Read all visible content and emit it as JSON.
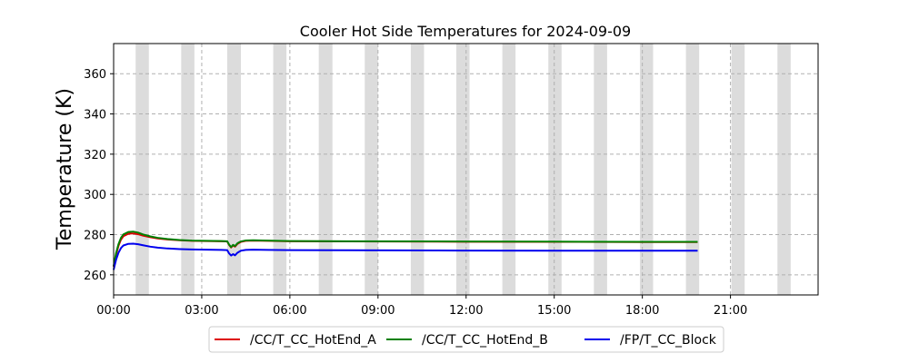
{
  "chart_data": {
    "type": "line",
    "title": "Cooler Hot Side Temperatures for 2024-09-09",
    "xlabel": "",
    "ylabel": "Temperature (K)",
    "xlim": [
      "00:00",
      "23:59"
    ],
    "ylim": [
      250,
      375
    ],
    "x_ticks": [
      "00:00",
      "03:00",
      "06:00",
      "09:00",
      "12:00",
      "15:00",
      "18:00",
      "21:00"
    ],
    "y_ticks": [
      260,
      280,
      300,
      320,
      340,
      360
    ],
    "grid": true,
    "legend_position": "bottom-center",
    "shaded_intervals": [
      [
        "00:45",
        "01:12"
      ],
      [
        "02:18",
        "02:45"
      ],
      [
        "03:52",
        "04:20"
      ],
      [
        "05:26",
        "05:53"
      ],
      [
        "06:59",
        "07:27"
      ],
      [
        "08:33",
        "09:00"
      ],
      [
        "10:07",
        "10:34"
      ],
      [
        "11:40",
        "12:07"
      ],
      [
        "13:14",
        "13:41"
      ],
      [
        "14:48",
        "15:15"
      ],
      [
        "16:21",
        "16:48"
      ],
      [
        "17:55",
        "18:22"
      ],
      [
        "19:29",
        "19:56"
      ],
      [
        "21:02",
        "21:29"
      ],
      [
        "22:36",
        "23:03"
      ]
    ],
    "shade_color": "#dcdcdc",
    "series": [
      {
        "name": "/CC/T_CC_HotEnd_A",
        "color": "#dd0000",
        "points": [
          [
            "00:00",
            264
          ],
          [
            "00:05",
            270
          ],
          [
            "00:10",
            274.5
          ],
          [
            "00:15",
            277.5
          ],
          [
            "00:20",
            279.2
          ],
          [
            "00:30",
            280.4
          ],
          [
            "00:40",
            280.6
          ],
          [
            "00:50",
            280.2
          ],
          [
            "01:00",
            279.5
          ],
          [
            "01:15",
            278.7
          ],
          [
            "01:30",
            278.1
          ],
          [
            "01:50",
            277.6
          ],
          [
            "02:15",
            277.2
          ],
          [
            "02:40",
            276.9
          ],
          [
            "03:10",
            276.8
          ],
          [
            "03:40",
            276.7
          ],
          [
            "03:52",
            276.6
          ],
          [
            "03:56",
            274.8
          ],
          [
            "04:00",
            273.6
          ],
          [
            "04:04",
            274.6
          ],
          [
            "04:08",
            274.0
          ],
          [
            "04:13",
            275.4
          ],
          [
            "04:20",
            276.4
          ],
          [
            "04:30",
            276.9
          ],
          [
            "04:45",
            277.0
          ],
          [
            "05:15",
            276.9
          ],
          [
            "06:00",
            276.7
          ],
          [
            "08:00",
            276.6
          ],
          [
            "11:00",
            276.5
          ],
          [
            "15:00",
            276.4
          ],
          [
            "18:00",
            276.3
          ],
          [
            "19:53",
            276.3
          ]
        ]
      },
      {
        "name": "/CC/T_CC_HotEnd_B",
        "color": "#008000",
        "points": [
          [
            "00:00",
            264.3
          ],
          [
            "00:05",
            270.8
          ],
          [
            "00:10",
            275.3
          ],
          [
            "00:15",
            278.4
          ],
          [
            "00:20",
            280.1
          ],
          [
            "00:30",
            281.3
          ],
          [
            "00:40",
            281.5
          ],
          [
            "00:50",
            281.0
          ],
          [
            "01:00",
            280.1
          ],
          [
            "01:15",
            279.1
          ],
          [
            "01:30",
            278.4
          ],
          [
            "01:50",
            277.8
          ],
          [
            "02:15",
            277.3
          ],
          [
            "02:40",
            277.0
          ],
          [
            "03:10",
            276.9
          ],
          [
            "03:40",
            276.8
          ],
          [
            "03:52",
            276.7
          ],
          [
            "03:56",
            275.0
          ],
          [
            "04:00",
            273.8
          ],
          [
            "04:04",
            274.9
          ],
          [
            "04:08",
            274.3
          ],
          [
            "04:13",
            275.7
          ],
          [
            "04:20",
            276.6
          ],
          [
            "04:30",
            277.1
          ],
          [
            "04:45",
            277.2
          ],
          [
            "05:15",
            277.0
          ],
          [
            "06:00",
            276.8
          ],
          [
            "08:00",
            276.7
          ],
          [
            "11:00",
            276.6
          ],
          [
            "15:00",
            276.5
          ],
          [
            "18:00",
            276.4
          ],
          [
            "19:53",
            276.4
          ]
        ]
      },
      {
        "name": "/FP/T_CC_Block",
        "color": "#0000ee",
        "points": [
          [
            "00:00",
            262.5
          ],
          [
            "00:05",
            267.5
          ],
          [
            "00:10",
            271.0
          ],
          [
            "00:15",
            273.3
          ],
          [
            "00:20",
            274.6
          ],
          [
            "00:30",
            275.4
          ],
          [
            "00:40",
            275.5
          ],
          [
            "00:50",
            275.2
          ],
          [
            "01:00",
            274.7
          ],
          [
            "01:15",
            274.0
          ],
          [
            "01:30",
            273.5
          ],
          [
            "01:50",
            273.1
          ],
          [
            "02:15",
            272.8
          ],
          [
            "02:40",
            272.6
          ],
          [
            "03:10",
            272.5
          ],
          [
            "03:40",
            272.4
          ],
          [
            "03:52",
            272.3
          ],
          [
            "03:56",
            270.6
          ],
          [
            "04:00",
            269.6
          ],
          [
            "04:04",
            270.3
          ],
          [
            "04:08",
            269.7
          ],
          [
            "04:13",
            271.0
          ],
          [
            "04:20",
            272.0
          ],
          [
            "04:30",
            272.4
          ],
          [
            "04:45",
            272.5
          ],
          [
            "05:15",
            272.4
          ],
          [
            "06:00",
            272.3
          ],
          [
            "08:00",
            272.2
          ],
          [
            "11:00",
            272.1
          ],
          [
            "15:00",
            272.0
          ],
          [
            "18:00",
            272.0
          ],
          [
            "19:53",
            272.0
          ]
        ]
      }
    ]
  }
}
